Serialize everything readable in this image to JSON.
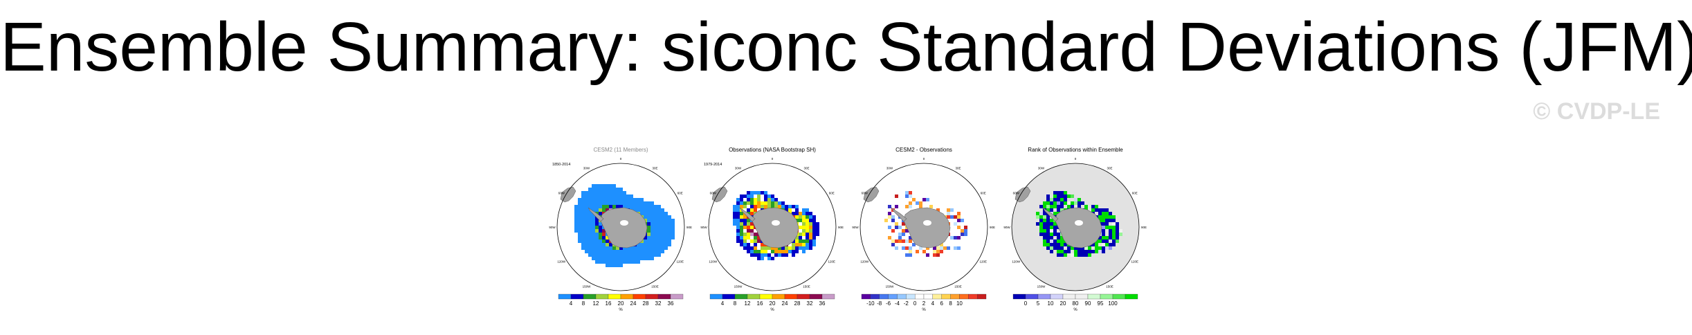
{
  "page": {
    "title": "Ensemble Summary: siconc Standard Deviations (JFM)",
    "watermark": "© CVDP-LE"
  },
  "chart_data": [
    {
      "type": "heatmap",
      "title": "CESM2",
      "subtitle": "(11 Members)",
      "period": "1850-2014",
      "longitude_labels": [
        "0",
        "30E",
        "60E",
        "90E",
        "120E",
        "150E",
        "180",
        "150W",
        "120W",
        "90W",
        "60W",
        "30W"
      ],
      "colorbar": {
        "ticks": [
          "4",
          "8",
          "12",
          "16",
          "20",
          "24",
          "28",
          "32",
          "36"
        ],
        "unit": "%",
        "colors": [
          "#1e90ff",
          "#0000c8",
          "#28a028",
          "#a0d23c",
          "#ffff00",
          "#ffa000",
          "#ff4000",
          "#d21e1e",
          "#8b0a50",
          "#c89bc8"
        ]
      }
    },
    {
      "type": "heatmap",
      "title": "Observations (NASA Bootstrap SH)",
      "subtitle": "",
      "period": "1979-2014",
      "longitude_labels": [
        "0",
        "30E",
        "60E",
        "90E",
        "120E",
        "150E",
        "180",
        "150W",
        "120W",
        "90W",
        "60W",
        "30W"
      ],
      "colorbar": {
        "ticks": [
          "4",
          "8",
          "12",
          "16",
          "20",
          "24",
          "28",
          "32",
          "36"
        ],
        "unit": "%",
        "colors": [
          "#1e90ff",
          "#0000c8",
          "#28a028",
          "#a0d23c",
          "#ffff00",
          "#ffa000",
          "#ff4000",
          "#d21e1e",
          "#8b0a50",
          "#c89bc8"
        ]
      }
    },
    {
      "type": "heatmap",
      "title": "CESM2 - Observations",
      "subtitle": "",
      "period": "",
      "longitude_labels": [
        "0",
        "30E",
        "60E",
        "90E",
        "120E",
        "150E",
        "180",
        "150W",
        "120W",
        "90W",
        "60W",
        "30W"
      ],
      "colorbar": {
        "ticks": [
          "-10",
          "-8",
          "-6",
          "-4",
          "-2",
          "0",
          "2",
          "4",
          "6",
          "8",
          "10"
        ],
        "unit": "%",
        "colors": [
          "#5a00a0",
          "#3232c8",
          "#4678f0",
          "#64a0ff",
          "#96c8ff",
          "#c8e6ff",
          "#ffffff",
          "#ffffff",
          "#fff09b",
          "#ffd250",
          "#ffa02d",
          "#ff6e1e",
          "#f03c28",
          "#c81e1e"
        ]
      }
    },
    {
      "type": "heatmap",
      "title": "Rank of Observations within Ensemble",
      "subtitle": "",
      "period": "",
      "longitude_labels": [
        "0",
        "30E",
        "60E",
        "90E",
        "120E",
        "150E",
        "180",
        "150W",
        "120W",
        "90W",
        "60W",
        "30W"
      ],
      "colorbar": {
        "ticks": [
          "0",
          "5",
          "10",
          "20",
          "80",
          "90",
          "95",
          "100"
        ],
        "unit": "%",
        "colors": [
          "#0000b4",
          "#5050e6",
          "#9696f5",
          "#d2d2fa",
          "#f0f0f0",
          "#f0f0f0",
          "#d2fad2",
          "#96f596",
          "#50e650",
          "#00dc00"
        ]
      }
    }
  ]
}
